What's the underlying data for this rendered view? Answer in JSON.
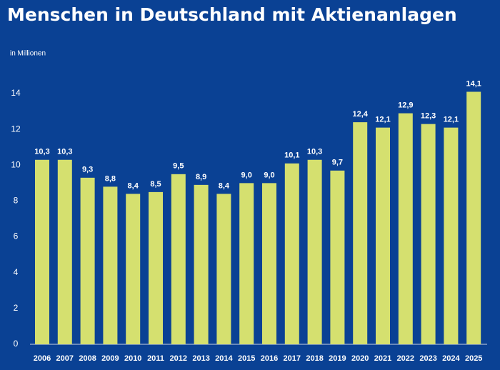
{
  "chart_data": {
    "type": "bar",
    "title": "Menschen in Deutschland mit Aktienanlagen",
    "y_label": "in Millionen",
    "categories": [
      "2006",
      "2007",
      "2008",
      "2009",
      "2010",
      "2011",
      "2012",
      "2013",
      "2014",
      "2015",
      "2016",
      "2017",
      "2018",
      "2019",
      "2020",
      "2021",
      "2022",
      "2023",
      "2024",
      "2025"
    ],
    "values": [
      10.3,
      10.3,
      9.3,
      8.8,
      8.4,
      8.5,
      9.5,
      8.9,
      8.4,
      9.0,
      9.0,
      10.1,
      10.3,
      9.7,
      12.4,
      12.1,
      12.9,
      12.3,
      12.1,
      14.1
    ],
    "value_labels": [
      "10,3",
      "10,3",
      "9,3",
      "8,8",
      "8,4",
      "8,5",
      "9,5",
      "8,9",
      "8,4",
      "9,0",
      "9,0",
      "10,1",
      "10,3",
      "9,7",
      "12,4",
      "12,1",
      "12,9",
      "12,3",
      "12,1",
      "14,1"
    ],
    "color": "#d5e06f",
    "ylim": [
      0,
      14
    ],
    "yticks": [
      0,
      2,
      4,
      6,
      8,
      10,
      12,
      14
    ],
    "grid": false
  }
}
